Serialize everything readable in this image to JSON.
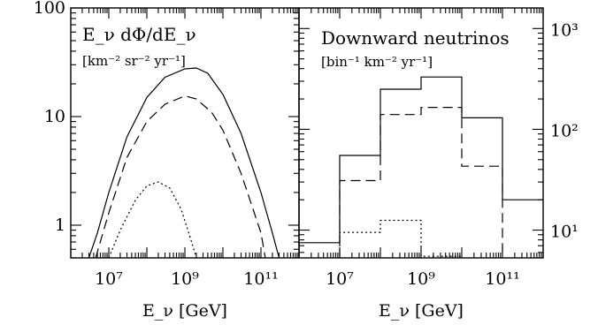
{
  "chart_data": [
    {
      "type": "line",
      "panel": "left",
      "title": "",
      "annotation": {
        "main": "E_ν dΦ/dE_ν",
        "units": "[km⁻² sr⁻² yr⁻¹]"
      },
      "xlabel": "E_ν [GeV]",
      "ylabel": "",
      "xscale": "log",
      "yscale": "log",
      "xlim": [
        1000000,
        1000000000000
      ],
      "ylim": [
        0.5,
        100
      ],
      "x_ticks": [
        10000000,
        1000000000,
        100000000000
      ],
      "x_tick_labels": [
        "10⁷",
        "10⁹",
        "10¹¹"
      ],
      "y_ticks": [
        1,
        10,
        100
      ],
      "y_tick_labels": [
        "1",
        "10",
        "100"
      ],
      "grid": false,
      "series": [
        {
          "style": "solid",
          "x": [
            3000000,
            5000000,
            10000000,
            30000000,
            100000000,
            300000000,
            1000000000,
            2000000000,
            4000000000,
            10000000000,
            30000000000,
            100000000000,
            200000000000,
            300000000000
          ],
          "y": [
            0.5,
            0.85,
            2.0,
            6.5,
            15,
            23,
            27.5,
            28,
            25,
            16,
            7,
            2.0,
            0.85,
            0.5
          ]
        },
        {
          "style": "dashed",
          "x": [
            4500000,
            10000000,
            30000000,
            100000000,
            300000000,
            1000000000,
            2000000000,
            5000000000,
            10000000000,
            30000000000,
            100000000000,
            130000000000
          ],
          "y": [
            0.5,
            1.3,
            4.2,
            9,
            13,
            15.5,
            14.5,
            11,
            7.5,
            3,
            0.85,
            0.5
          ]
        },
        {
          "style": "dotted",
          "x": [
            10000000,
            20000000,
            50000000,
            100000000,
            200000000,
            400000000,
            800000000,
            1500000000,
            2000000000
          ],
          "y": [
            0.5,
            0.9,
            1.7,
            2.3,
            2.5,
            2.2,
            1.4,
            0.7,
            0.5
          ]
        }
      ]
    },
    {
      "type": "line",
      "panel": "right",
      "title": "",
      "annotation": {
        "main": "Downward neutrinos",
        "units": "[bin⁻¹ km⁻² yr⁻¹]"
      },
      "xlabel": "E_ν [GeV]",
      "ylabel": "",
      "xscale": "log",
      "yscale": "log",
      "xlim": [
        1000000,
        1000000000000
      ],
      "ylim": [
        5.3,
        1600
      ],
      "x_ticks": [
        10000000,
        1000000000,
        100000000000
      ],
      "x_tick_labels": [
        "10⁷",
        "10⁹",
        "10¹¹"
      ],
      "y_ticks": [
        10,
        100,
        1000
      ],
      "y_tick_labels": [
        "10¹",
        "10²",
        "10³"
      ],
      "grid": false,
      "series": [
        {
          "style": "solid-step",
          "bin_edges": [
            1000000,
            10000000,
            100000000,
            1000000000,
            10000000000,
            100000000000,
            1000000000000
          ],
          "values": [
            7.5,
            55,
            250,
            330,
            130,
            20
          ]
        },
        {
          "style": "dashed-step",
          "bin_edges": [
            10000000,
            100000000,
            1000000000,
            10000000000,
            100000000000
          ],
          "values": [
            31,
            140,
            165,
            43
          ]
        },
        {
          "style": "dotted-step",
          "bin_edges": [
            10000000,
            100000000,
            1000000000,
            10000000000
          ],
          "values": [
            9.5,
            12.5,
            5.5
          ]
        }
      ]
    }
  ]
}
